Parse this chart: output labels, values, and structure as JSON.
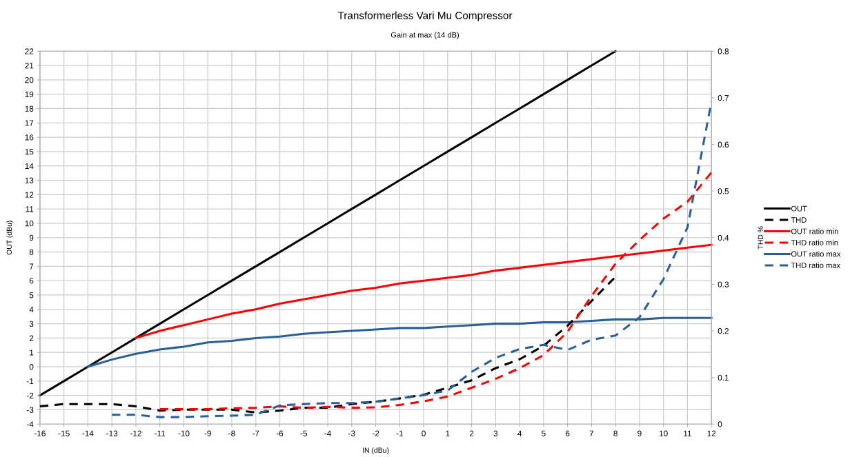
{
  "chart_data": {
    "type": "line",
    "title": "Transformerless Vari Mu Compressor",
    "subtitle": "Gain at max (14 dB)",
    "xlabel": "IN (dBu)",
    "ylabel": "OUT (dBu)",
    "y2label": "THD %",
    "xlim": [
      -16,
      12
    ],
    "xticks": [
      -16,
      -15,
      -14,
      -13,
      -12,
      -11,
      -10,
      -9,
      -8,
      -7,
      -6,
      -5,
      -4,
      -3,
      -2,
      -1,
      0,
      1,
      2,
      3,
      4,
      5,
      6,
      7,
      8,
      9,
      10,
      11,
      12
    ],
    "ylim": [
      -4,
      22
    ],
    "yticks": [
      -4,
      -3,
      -2,
      -1,
      0,
      1,
      2,
      3,
      4,
      5,
      6,
      7,
      8,
      9,
      10,
      11,
      12,
      13,
      14,
      15,
      16,
      17,
      18,
      19,
      20,
      21,
      22
    ],
    "y2lim": [
      0,
      0.8
    ],
    "y2ticks": [
      0,
      0.1,
      0.2,
      0.3,
      0.4,
      0.5,
      0.6,
      0.7,
      0.8
    ],
    "grid": true,
    "legend": "right",
    "marker": "none",
    "series": [
      {
        "name": "OUT",
        "color": "#000000",
        "line_style": "solid",
        "x": [
          -16,
          -15,
          -14,
          -13,
          -12,
          -11,
          -10,
          -9,
          -8,
          -7,
          -6,
          -5,
          -4,
          -3,
          -2,
          -1,
          0,
          1,
          2,
          3,
          4,
          5,
          6,
          7,
          8
        ],
        "values": [
          -2,
          -1,
          0,
          1,
          2,
          3,
          4,
          5,
          6,
          7,
          8,
          9,
          10,
          11,
          12,
          13,
          14,
          15,
          16,
          17,
          18,
          19,
          20,
          21,
          22
        ]
      },
      {
        "name": "THD",
        "color": "#000000",
        "line_style": "dashed",
        "axis": "y2",
        "x": [
          -16,
          -15,
          -14,
          -13,
          -12,
          -11,
          -10,
          -9,
          -8,
          -7,
          -6,
          -5,
          -4,
          -3,
          -2,
          -1,
          0,
          1,
          2,
          3,
          4,
          5,
          6,
          7,
          8
        ],
        "values": [
          0.038,
          0.043,
          0.043,
          0.043,
          0.038,
          0.029,
          0.031,
          0.031,
          0.031,
          0.025,
          0.029,
          0.035,
          0.035,
          0.043,
          0.048,
          0.055,
          0.063,
          0.078,
          0.094,
          0.12,
          0.139,
          0.168,
          0.211,
          0.264,
          0.316
        ]
      },
      {
        "name": "OUT ratio min",
        "color": "#ff0000",
        "line_style": "solid",
        "x": [
          -12,
          -11,
          -10,
          -9,
          -8,
          -7,
          -6,
          -5,
          -4,
          -3,
          -2,
          -1,
          0,
          1,
          2,
          3,
          4,
          5,
          6,
          7,
          8,
          9,
          10,
          11,
          12
        ],
        "values": [
          2,
          2.5,
          2.9,
          3.3,
          3.7,
          4.0,
          4.4,
          4.7,
          5.0,
          5.3,
          5.5,
          5.8,
          6.0,
          6.2,
          6.4,
          6.7,
          6.9,
          7.1,
          7.3,
          7.5,
          7.7,
          7.9,
          8.1,
          8.3,
          8.5
        ]
      },
      {
        "name": "THD ratio min",
        "color": "#ff0000",
        "line_style": "dashed",
        "axis": "y2",
        "x": [
          -11,
          -10,
          -9,
          -8,
          -7,
          -6,
          -5,
          -4,
          -3,
          -2,
          -1,
          0,
          1,
          2,
          3,
          4,
          5,
          6,
          7,
          8,
          9,
          10,
          11,
          12
        ],
        "values": [
          0.032,
          0.032,
          0.032,
          0.034,
          0.035,
          0.038,
          0.035,
          0.037,
          0.035,
          0.036,
          0.041,
          0.049,
          0.059,
          0.078,
          0.097,
          0.12,
          0.148,
          0.198,
          0.275,
          0.344,
          0.395,
          0.441,
          0.477,
          0.54
        ]
      },
      {
        "name": "OUT ratio max",
        "color": "#2a6099",
        "line_style": "solid",
        "x": [
          -14,
          -13,
          -12,
          -11,
          -10,
          -9,
          -8,
          -7,
          -6,
          -5,
          -4,
          -3,
          -2,
          -1,
          0,
          1,
          2,
          3,
          4,
          5,
          6,
          7,
          8,
          9,
          10,
          11,
          12
        ],
        "values": [
          0,
          0.5,
          0.9,
          1.2,
          1.4,
          1.7,
          1.8,
          2.0,
          2.1,
          2.3,
          2.4,
          2.5,
          2.6,
          2.7,
          2.7,
          2.8,
          2.9,
          3.0,
          3.0,
          3.1,
          3.1,
          3.2,
          3.3,
          3.3,
          3.4,
          3.4,
          3.4
        ]
      },
      {
        "name": "THD ratio max",
        "color": "#2a6099",
        "line_style": "dashed",
        "axis": "y2",
        "x": [
          -13,
          -12,
          -11,
          -10,
          -9,
          -8,
          -7,
          -6,
          -5,
          -4,
          -3,
          -2,
          -1,
          0,
          1,
          2,
          3,
          4,
          5,
          6,
          7,
          8,
          9,
          10,
          11,
          12
        ],
        "values": [
          0.02,
          0.02,
          0.015,
          0.015,
          0.017,
          0.018,
          0.02,
          0.04,
          0.043,
          0.045,
          0.045,
          0.048,
          0.055,
          0.062,
          0.072,
          0.112,
          0.142,
          0.161,
          0.17,
          0.159,
          0.181,
          0.19,
          0.229,
          0.311,
          0.422,
          0.692
        ]
      }
    ]
  }
}
